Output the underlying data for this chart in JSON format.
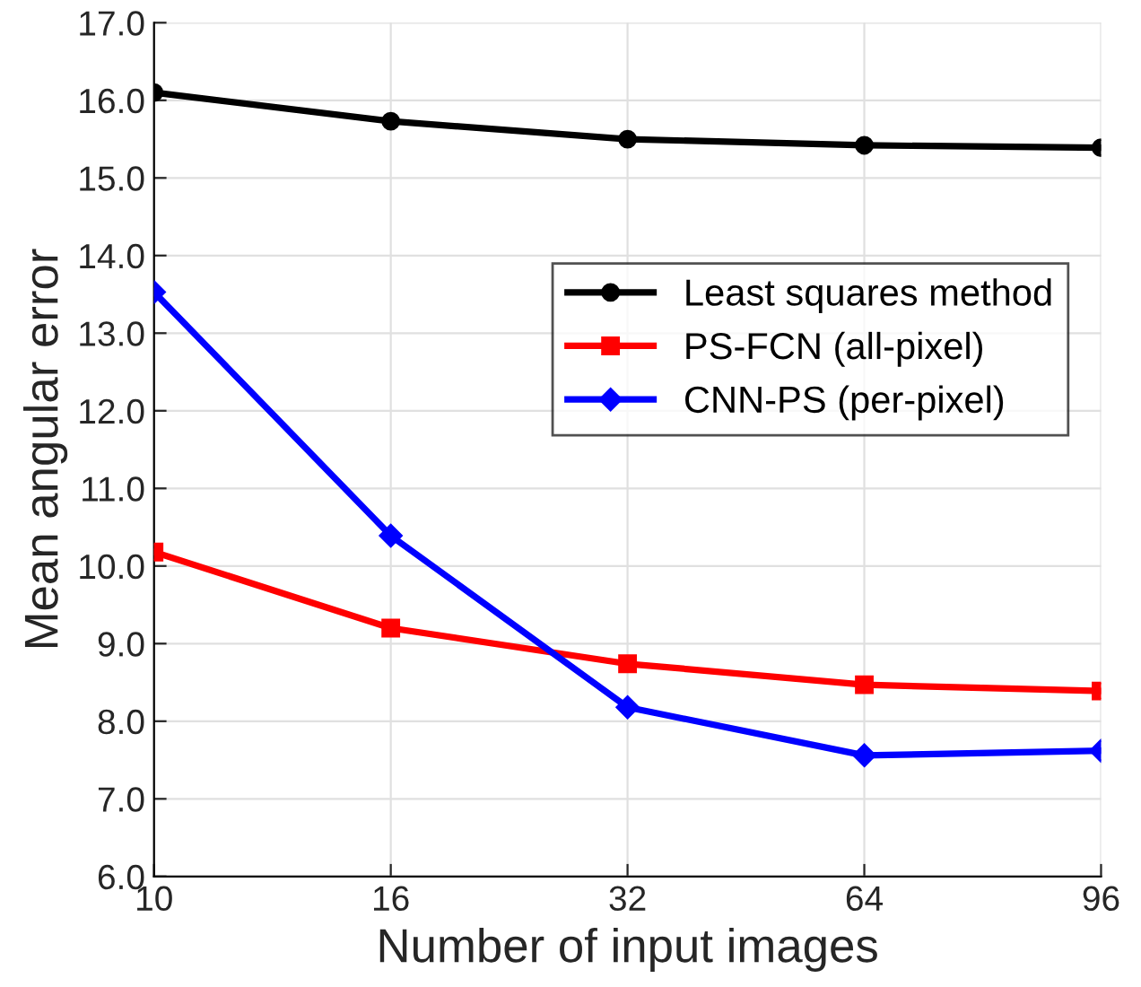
{
  "chart_data": {
    "type": "line",
    "xlabel": "Number of input images",
    "ylabel": "Mean angular error",
    "categories": [
      "10",
      "16",
      "32",
      "64",
      "96"
    ],
    "series": [
      {
        "name": "Least squares method",
        "color": "#000000",
        "marker": "circle",
        "values": [
          16.1,
          15.73,
          15.5,
          15.42,
          15.39
        ]
      },
      {
        "name": "PS-FCN (all-pixel)",
        "color": "#ff0000",
        "marker": "square",
        "values": [
          10.18,
          9.2,
          8.74,
          8.47,
          8.39
        ]
      },
      {
        "name": "CNN-PS (per-pixel)",
        "color": "#0000ff",
        "marker": "diamond",
        "values": [
          13.53,
          10.39,
          8.18,
          7.56,
          7.62
        ]
      }
    ],
    "ylim": [
      6,
      17
    ],
    "yticks": [
      {
        "value": 6,
        "label": "6.0"
      },
      {
        "value": 7,
        "label": "7.0"
      },
      {
        "value": 8,
        "label": "8.0"
      },
      {
        "value": 9,
        "label": "9.0"
      },
      {
        "value": 10,
        "label": "10.0"
      },
      {
        "value": 11,
        "label": "11.0"
      },
      {
        "value": 12,
        "label": "12.0"
      },
      {
        "value": 13,
        "label": "13.0"
      },
      {
        "value": 14,
        "label": "14.0"
      },
      {
        "value": 15,
        "label": "15.0"
      },
      {
        "value": 16,
        "label": "16.0"
      },
      {
        "value": 17,
        "label": "17.0"
      }
    ],
    "grid": true,
    "legend": "right",
    "line_style": "solid"
  }
}
